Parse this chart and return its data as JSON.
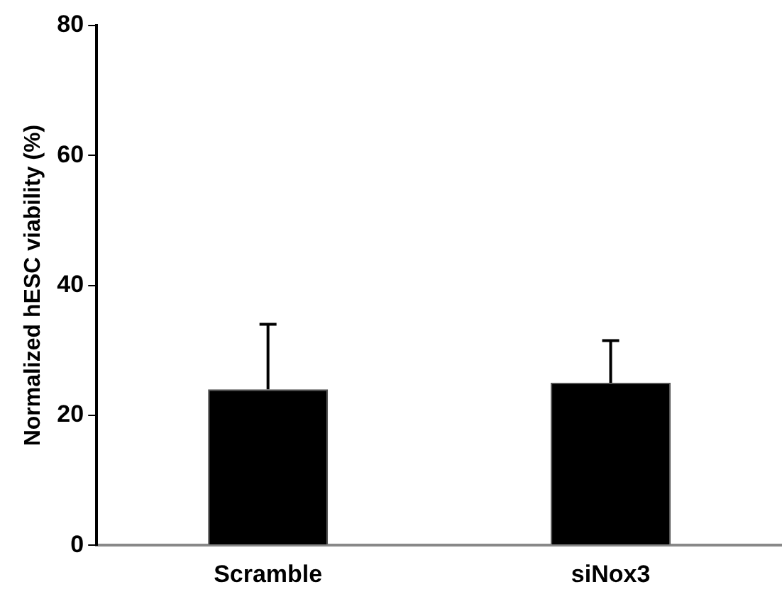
{
  "chart_data": {
    "type": "bar",
    "ylabel": "Normalized hESC viability (%)",
    "categories": [
      "Scramble",
      "siNox3"
    ],
    "values": [
      24,
      25
    ],
    "errors": [
      [
        24,
        34
      ],
      [
        25,
        31.5
      ]
    ],
    "color": "#000000",
    "ylim": [
      0,
      80
    ],
    "yticks": [
      0,
      20,
      40,
      60,
      80
    ],
    "grid": false,
    "legend": false
  }
}
